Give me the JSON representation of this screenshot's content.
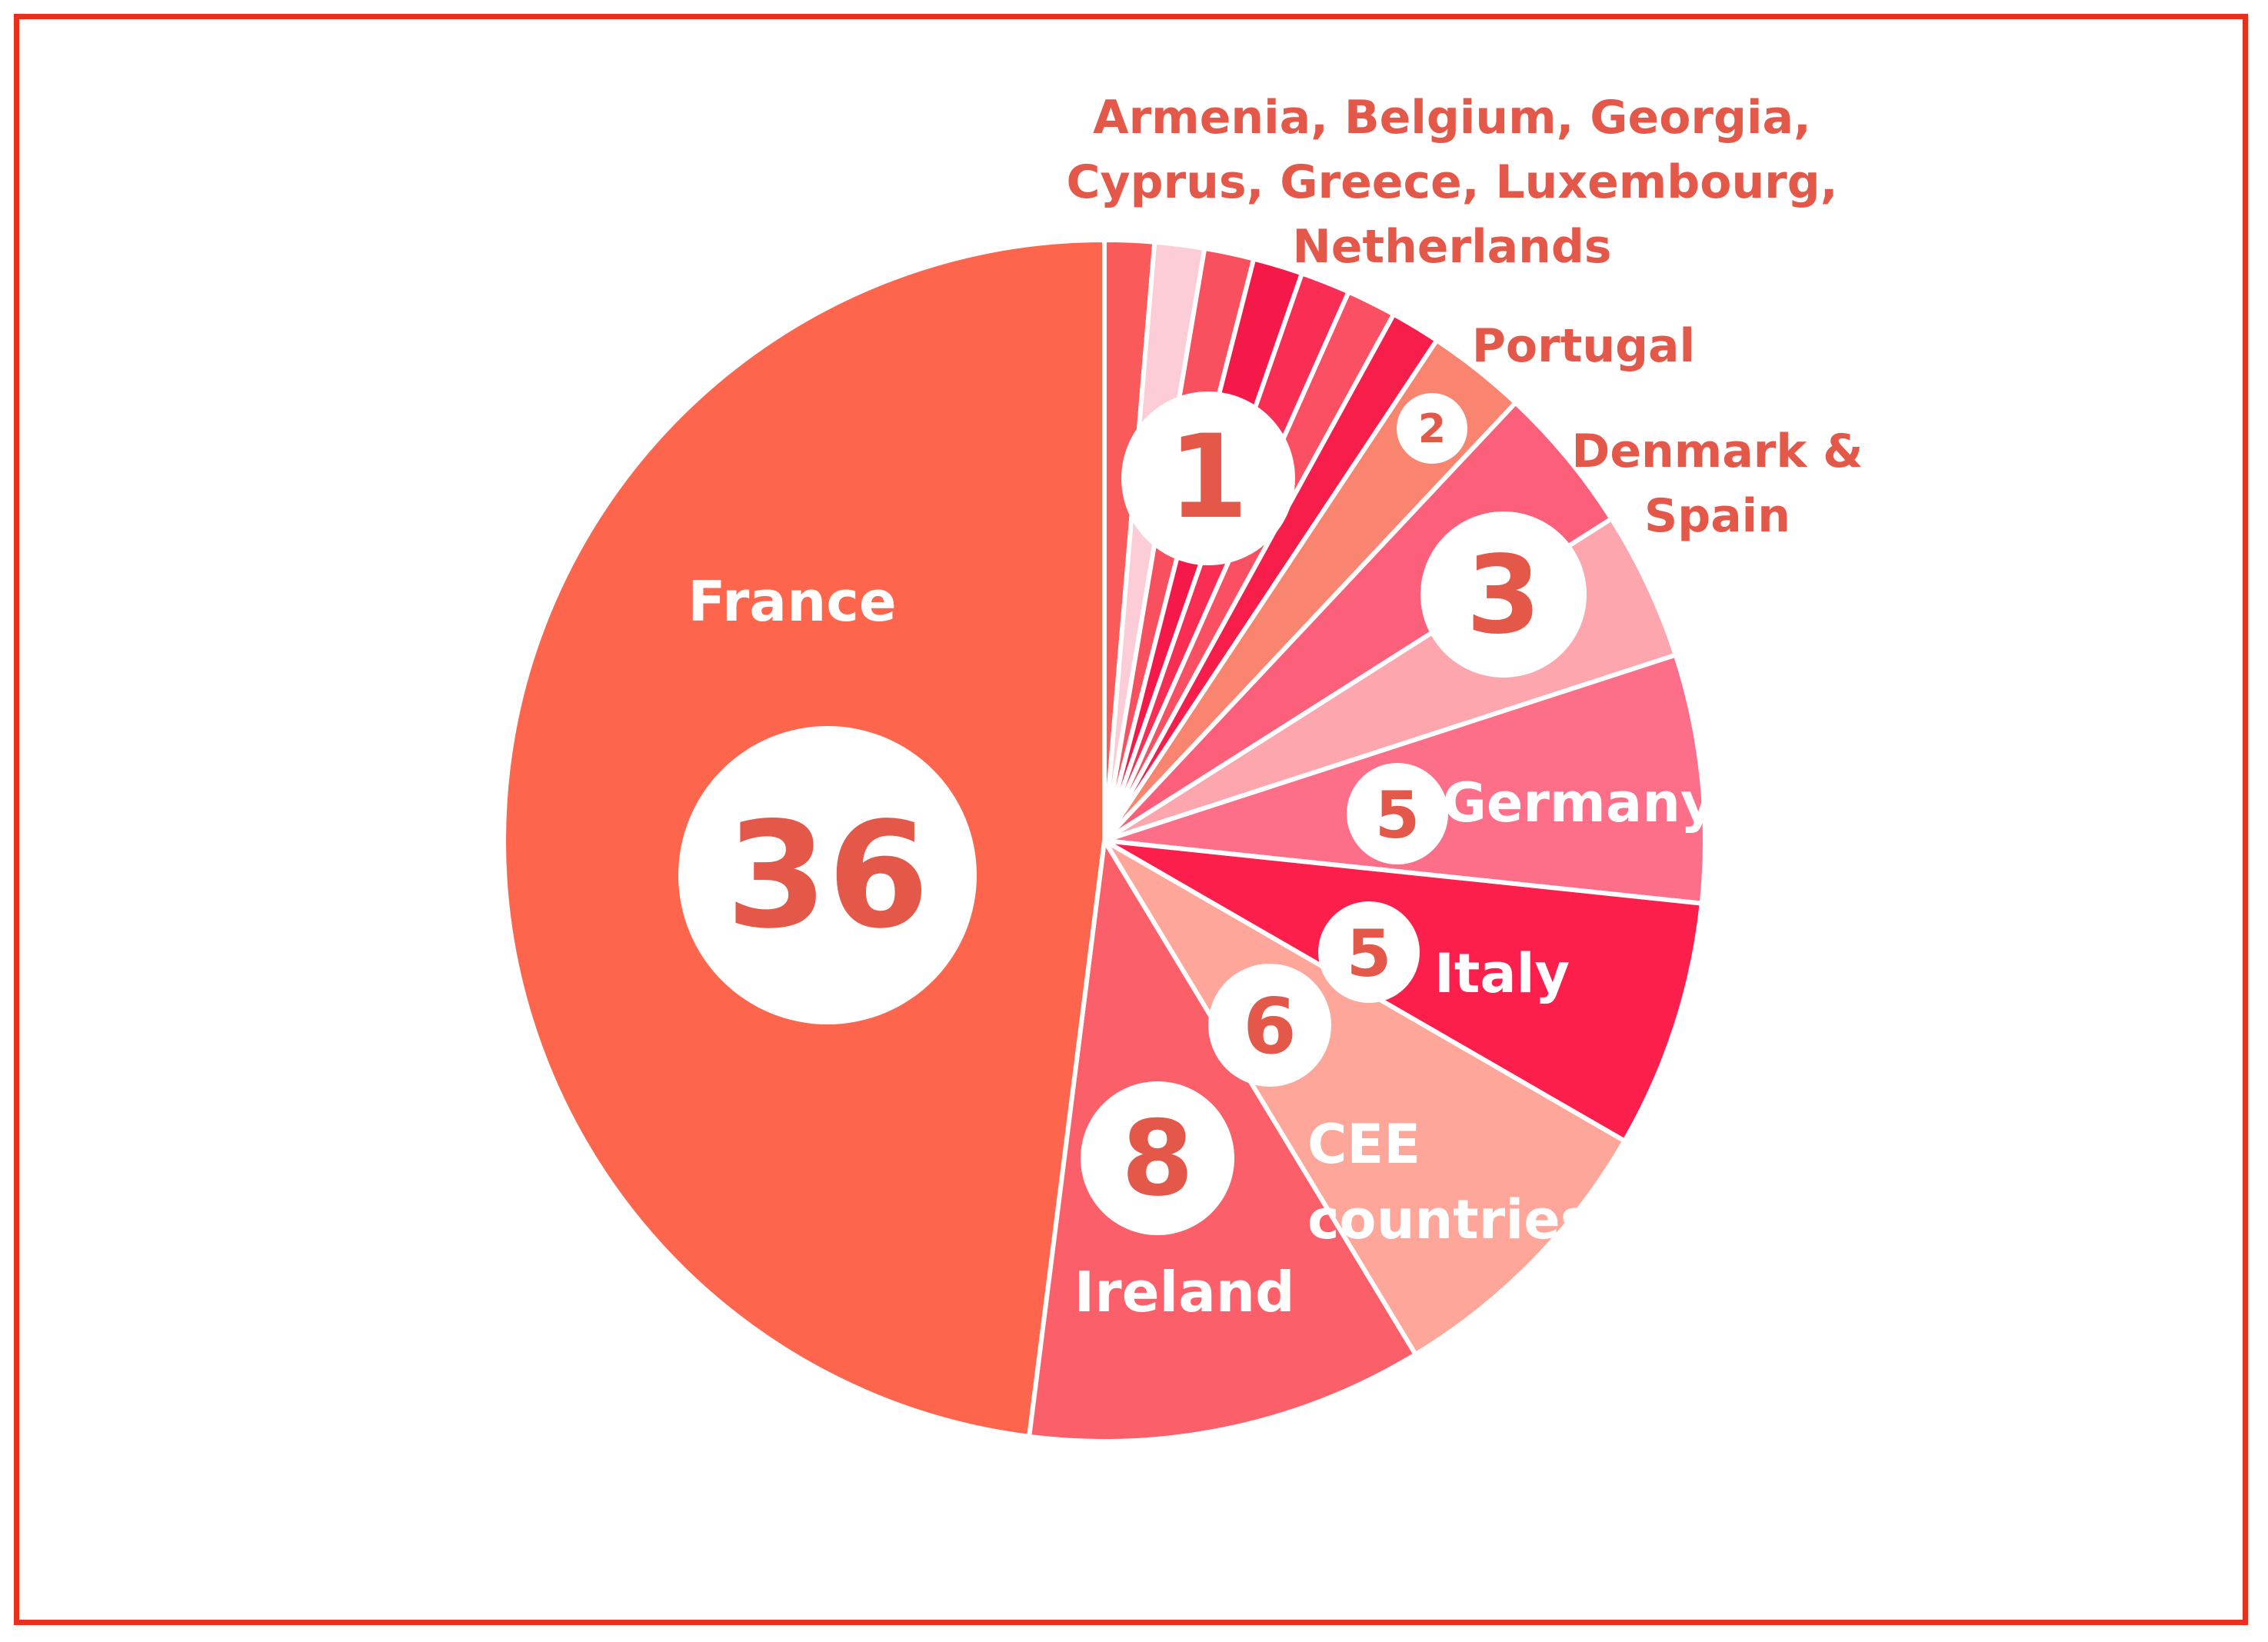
{
  "colors": {
    "frame": "#e8301c",
    "separator": "#ffffff",
    "outside_label": "#e4584a",
    "inside_label": "#ffffff",
    "number_text": "#e4584a",
    "number_circle": "#ffffff"
  },
  "chart_data": {
    "type": "pie",
    "title": "",
    "start": "12 o'clock",
    "direction": "clockwise",
    "slices": [
      {
        "name": "Armenia",
        "value": 1,
        "color": "#fa5a5a"
      },
      {
        "name": "Belgium",
        "value": 1,
        "color": "#fccdd6"
      },
      {
        "name": "Georgia",
        "value": 1,
        "color": "#f8505e"
      },
      {
        "name": "Cyprus",
        "value": 1,
        "color": "#f5194a"
      },
      {
        "name": "Greece",
        "value": 1,
        "color": "#fa2d55"
      },
      {
        "name": "Luxembourg",
        "value": 1,
        "color": "#fb5063"
      },
      {
        "name": "Netherlands",
        "value": 1,
        "color": "#f81e4b"
      },
      {
        "name": "Portugal",
        "value": 2,
        "color": "#f98470"
      },
      {
        "name": "Denmark",
        "value": 3,
        "color": "#fb5f79"
      },
      {
        "name": "Spain",
        "value": 3,
        "color": "#fda6ae"
      },
      {
        "name": "Germany",
        "value": 5,
        "color": "#fd6f89"
      },
      {
        "name": "Italy",
        "value": 5,
        "color": "#fc1f4b"
      },
      {
        "name": "CEE countries",
        "value": 6,
        "color": "#fda699"
      },
      {
        "name": "Ireland",
        "value": 8,
        "color": "#fa5f6a"
      },
      {
        "name": "France",
        "value": 36,
        "color": "#fe654d"
      }
    ],
    "labels": [
      {
        "text": "Armenia, Belgium, Georgia,",
        "style": "outside"
      },
      {
        "text": "Cyprus, Greece, Luxembourg,",
        "style": "outside"
      },
      {
        "text": "Netherlands",
        "style": "outside"
      },
      {
        "text": "Portugal",
        "style": "outside"
      },
      {
        "text": "Denmark &",
        "style": "outside"
      },
      {
        "text": "Spain",
        "style": "outside"
      },
      {
        "text": "France",
        "style": "inside"
      },
      {
        "text": "Germany",
        "style": "inside"
      },
      {
        "text": "Italy",
        "style": "inside"
      },
      {
        "text": "CEE",
        "style": "inside"
      },
      {
        "text": "countries",
        "style": "inside"
      },
      {
        "text": "Ireland",
        "style": "inside"
      }
    ],
    "value_badges": [
      {
        "text": "1"
      },
      {
        "text": "2"
      },
      {
        "text": "3"
      },
      {
        "text": "5"
      },
      {
        "text": "5"
      },
      {
        "text": "6"
      },
      {
        "text": "8"
      },
      {
        "text": "36"
      }
    ]
  }
}
